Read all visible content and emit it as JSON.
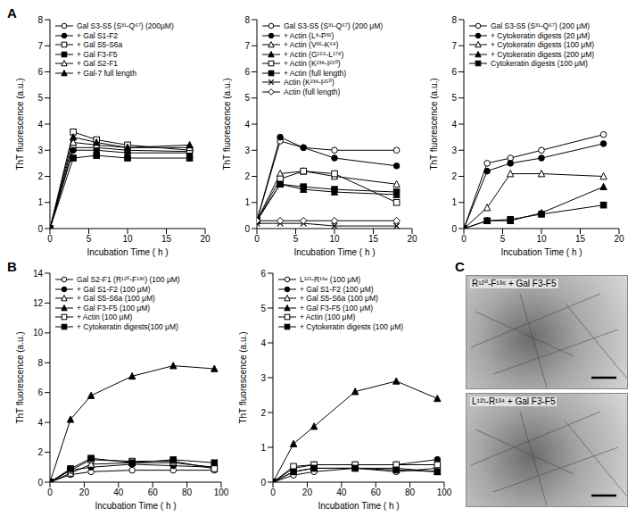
{
  "panel_labels": [
    "A",
    "B",
    "C"
  ],
  "chart_data": [
    {
      "type": "line",
      "x_label": "Incubation Time ( h )",
      "y_label": "ThT fluorescence (a.u.)",
      "xlim": [
        0,
        20
      ],
      "xticks": [
        0,
        5,
        10,
        15,
        20
      ],
      "ylim": [
        0,
        8
      ],
      "yticks": [
        0,
        1,
        2,
        3,
        4,
        5,
        6,
        7,
        8
      ],
      "x": [
        0,
        3,
        6,
        10,
        18
      ],
      "series": [
        {
          "name": "Gal S3-S5 (S³¹-Q⁶⁷) (200μM)",
          "color": "#000000",
          "marker": "circle-open",
          "values": [
            0,
            3.1,
            3.1,
            3.0,
            2.95
          ]
        },
        {
          "name": "+ Gal S1-F2",
          "color": "#000000",
          "marker": "circle",
          "values": [
            0,
            3.0,
            3.0,
            2.9,
            2.9
          ]
        },
        {
          "name": "+ Gal S5-S6a",
          "color": "#000000",
          "marker": "square-open",
          "values": [
            0,
            3.7,
            3.4,
            3.2,
            3.0
          ]
        },
        {
          "name": "+ Gal F3-F5",
          "color": "#000000",
          "marker": "square",
          "values": [
            0,
            2.7,
            2.8,
            2.7,
            2.7
          ]
        },
        {
          "name": "+ Gal S2-F1",
          "color": "#000000",
          "marker": "triangle-open",
          "values": [
            0,
            3.3,
            3.2,
            3.1,
            3.1
          ]
        },
        {
          "name": "+ Gal-7 full length",
          "color": "#000000",
          "marker": "triangle",
          "values": [
            0,
            3.5,
            3.3,
            3.1,
            3.2
          ]
        }
      ]
    },
    {
      "type": "line",
      "x_label": "Incubation Time ( h )",
      "y_label": "ThT fluorescence (a.u.)",
      "xlim": [
        0,
        20
      ],
      "xticks": [
        0,
        5,
        10,
        15,
        20
      ],
      "ylim": [
        0,
        8
      ],
      "yticks": [
        0,
        1,
        2,
        3,
        4,
        5,
        6,
        7,
        8
      ],
      "x": [
        0,
        3,
        6,
        10,
        18
      ],
      "series": [
        {
          "name": "Gal S3-S5 (S³¹-Q⁶⁷) (200 μM)",
          "color": "#000000",
          "marker": "circle-open",
          "values": [
            0.3,
            3.35,
            3.1,
            3.0,
            3.0
          ]
        },
        {
          "name": "+ Actin (L⁸-P³²)",
          "color": "#000000",
          "marker": "circle",
          "values": [
            0.3,
            3.5,
            3.1,
            2.7,
            2.4
          ]
        },
        {
          "name": "+ Actin (V³⁵-K⁶⁸)",
          "color": "#000000",
          "marker": "triangle-open",
          "values": [
            0.3,
            2.1,
            2.2,
            2.0,
            1.7
          ]
        },
        {
          "name": "+ Actin (G¹⁵⁶-L¹⁷⁸)",
          "color": "#000000",
          "marker": "triangle",
          "values": [
            0.3,
            1.7,
            1.5,
            1.4,
            1.3
          ]
        },
        {
          "name": "+ Actin (K²³⁸-I²⁵⁰)",
          "color": "#000000",
          "marker": "square-open",
          "values": [
            0.3,
            1.9,
            2.2,
            2.1,
            1.0
          ]
        },
        {
          "name": "+ Actin (full length)",
          "color": "#000000",
          "marker": "square",
          "values": [
            0.3,
            1.7,
            1.6,
            1.5,
            1.4
          ]
        },
        {
          "name": "Actin (K²³⁸-I²⁵⁰)",
          "color": "#000000",
          "marker": "x",
          "values": [
            0.2,
            0.2,
            0.2,
            0.1,
            0.1
          ]
        },
        {
          "name": "Actin (full length)",
          "color": "#000000",
          "marker": "diamond-open",
          "values": [
            0.3,
            0.3,
            0.3,
            0.3,
            0.3
          ]
        }
      ]
    },
    {
      "type": "line",
      "x_label": "Incubation Time ( h )",
      "y_label": "ThT fluorescence (a.u.)",
      "xlim": [
        0,
        20
      ],
      "xticks": [
        0,
        5,
        10,
        15,
        20
      ],
      "ylim": [
        0,
        8
      ],
      "yticks": [
        0,
        1,
        2,
        3,
        4,
        5,
        6,
        7,
        8
      ],
      "x": [
        0,
        3,
        6,
        10,
        18
      ],
      "series": [
        {
          "name": "Gal S3-S5 (S³¹-Q⁶⁷) (200 μM)",
          "color": "#000000",
          "marker": "circle-open",
          "values": [
            0,
            2.5,
            2.7,
            3.0,
            3.6
          ]
        },
        {
          "name": "+ Cytokeratin digests (20 μM)",
          "color": "#000000",
          "marker": "circle",
          "values": [
            0,
            2.2,
            2.5,
            2.7,
            3.25
          ]
        },
        {
          "name": "+ Cytokeratin digests (100 μM)",
          "color": "#000000",
          "marker": "triangle-open",
          "values": [
            0,
            0.8,
            2.1,
            2.1,
            2.0
          ]
        },
        {
          "name": "+ Cytokeratin digests (200 μM)",
          "color": "#000000",
          "marker": "triangle",
          "values": [
            0,
            0.3,
            0.3,
            0.6,
            1.6
          ]
        },
        {
          "name": "Cytokeratin digests (100 μM)",
          "color": "#000000",
          "marker": "square",
          "values": [
            0,
            0.3,
            0.35,
            0.55,
            0.9
          ]
        }
      ]
    },
    {
      "type": "line",
      "x_label": "Incubation Time ( h )",
      "y_label": "ThT fluorescence (a.u.)",
      "xlim": [
        0,
        100
      ],
      "xticks": [
        0,
        20,
        40,
        60,
        80,
        100
      ],
      "ylim": [
        0,
        14
      ],
      "yticks": [
        0,
        2,
        4,
        6,
        8,
        10,
        12,
        14
      ],
      "x": [
        0,
        12,
        24,
        48,
        72,
        96
      ],
      "series": [
        {
          "name": "Gal S2-F1 (R¹²⁰-F¹³⁶) (100 μM)",
          "color": "#000000",
          "marker": "circle-open",
          "values": [
            0,
            0.5,
            0.7,
            0.8,
            0.8,
            0.8
          ]
        },
        {
          "name": "+ Gal S1-F2 (100 μM)",
          "color": "#000000",
          "marker": "circle",
          "values": [
            0,
            0.8,
            1.0,
            1.2,
            1.1,
            1.0
          ]
        },
        {
          "name": "+ Gal S5-S6a (100 μM)",
          "color": "#000000",
          "marker": "triangle-open",
          "values": [
            0,
            0.6,
            1.2,
            1.3,
            1.3,
            1.0
          ]
        },
        {
          "name": "+ Gal F3-F5 (100 μM)",
          "color": "#000000",
          "marker": "triangle",
          "values": [
            0,
            4.2,
            5.8,
            7.1,
            7.8,
            7.6
          ]
        },
        {
          "name": "+ Actin (100 μM)",
          "color": "#000000",
          "marker": "square-open",
          "values": [
            0,
            0.8,
            1.5,
            1.4,
            1.4,
            0.9
          ]
        },
        {
          "name": "+ Cytokeratin digests(100 μM)",
          "color": "#000000",
          "marker": "square",
          "values": [
            0,
            0.9,
            1.6,
            1.3,
            1.5,
            1.3
          ]
        }
      ]
    },
    {
      "type": "line",
      "x_label": "Incubation Time ( h )",
      "y_label": "ThT fluorescence (a.u.)",
      "xlim": [
        0,
        100
      ],
      "xticks": [
        0,
        20,
        40,
        60,
        80,
        100
      ],
      "ylim": [
        0,
        6
      ],
      "yticks": [
        0,
        1,
        2,
        3,
        4,
        5,
        6
      ],
      "x": [
        0,
        12,
        24,
        48,
        72,
        96
      ],
      "series": [
        {
          "name": "L¹²¹-R¹³⁴ (100 μM)",
          "color": "#000000",
          "marker": "circle-open",
          "values": [
            0,
            0.2,
            0.3,
            0.4,
            0.3,
            0.4
          ]
        },
        {
          "name": "+ Gal S1-F2 (100 μM)",
          "color": "#000000",
          "marker": "circle",
          "values": [
            0,
            0.4,
            0.5,
            0.5,
            0.5,
            0.65
          ]
        },
        {
          "name": "+ Gal S5-S6a (100 μM)",
          "color": "#000000",
          "marker": "triangle-open",
          "values": [
            0,
            0.3,
            0.4,
            0.4,
            0.4,
            0.3
          ]
        },
        {
          "name": "+ Gal F3-F5 (100 μM)",
          "color": "#000000",
          "marker": "triangle",
          "values": [
            0,
            1.1,
            1.6,
            2.6,
            2.9,
            2.4
          ]
        },
        {
          "name": "+ Actin (100 μM)",
          "color": "#000000",
          "marker": "square-open",
          "values": [
            0,
            0.45,
            0.5,
            0.5,
            0.5,
            0.5
          ]
        },
        {
          "name": "+ Cytokeratin digests (100 μM)",
          "color": "#000000",
          "marker": "square",
          "values": [
            0,
            0.3,
            0.4,
            0.4,
            0.35,
            0.3
          ]
        }
      ]
    }
  ],
  "micrographs": [
    {
      "label": "R¹²⁰-F¹³⁶ + Gal F3-F5"
    },
    {
      "label": "L¹²¹-R¹³⁴ + Gal F3-F5"
    }
  ]
}
